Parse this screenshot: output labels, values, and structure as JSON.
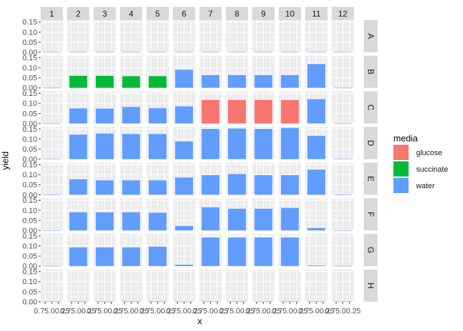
{
  "chart_data": {
    "type": "bar",
    "layout": "facet_grid",
    "xlabel": "x",
    "ylabel": "yield",
    "ylim": [
      0,
      0.16
    ],
    "y_ticks": [
      "0.00",
      "0.05",
      "0.10",
      "0.15"
    ],
    "x_tick_text": "0.75.00.25",
    "x_tick_labels": [
      "0.75",
      "1.00",
      "1.25"
    ],
    "grid": true,
    "columns": [
      "1",
      "2",
      "3",
      "4",
      "5",
      "6",
      "7",
      "8",
      "9",
      "10",
      "11",
      "12"
    ],
    "rows": [
      "A",
      "B",
      "C",
      "D",
      "E",
      "F",
      "G",
      "H"
    ],
    "legend": {
      "title": "media",
      "placement": "right",
      "entries": [
        {
          "label": "glucose",
          "color": "#F8766D"
        },
        {
          "label": "succinate",
          "color": "#00BA38"
        },
        {
          "label": "water",
          "color": "#619CFF"
        }
      ]
    },
    "cells": [
      {
        "row": "A",
        "values": [
          0.001,
          0.001,
          0.001,
          0.001,
          0.001,
          0.001,
          0.001,
          0.001,
          0.001,
          0.001,
          0.001,
          0.001
        ],
        "media": [
          "water",
          "water",
          "water",
          "water",
          "water",
          "water",
          "water",
          "water",
          "water",
          "water",
          "water",
          "water"
        ]
      },
      {
        "row": "B",
        "values": [
          0.001,
          0.06,
          0.06,
          0.058,
          0.058,
          0.09,
          0.063,
          0.063,
          0.063,
          0.063,
          0.118,
          0.001
        ],
        "media": [
          "water",
          "succinate",
          "succinate",
          "succinate",
          "succinate",
          "water",
          "water",
          "water",
          "water",
          "water",
          "water",
          "water"
        ]
      },
      {
        "row": "C",
        "values": [
          0.001,
          0.075,
          0.074,
          0.082,
          0.076,
          0.085,
          0.117,
          0.117,
          0.117,
          0.117,
          0.121,
          0.001
        ],
        "media": [
          "water",
          "water",
          "water",
          "water",
          "water",
          "water",
          "glucose",
          "glucose",
          "glucose",
          "glucose",
          "water",
          "water"
        ]
      },
      {
        "row": "D",
        "values": [
          0.001,
          0.122,
          0.127,
          0.125,
          0.125,
          0.088,
          0.15,
          0.152,
          0.15,
          0.155,
          0.116,
          0.001
        ],
        "media": [
          "water",
          "water",
          "water",
          "water",
          "water",
          "water",
          "water",
          "water",
          "water",
          "water",
          "water",
          "water"
        ]
      },
      {
        "row": "E",
        "values": [
          0.001,
          0.077,
          0.072,
          0.072,
          0.072,
          0.086,
          0.098,
          0.103,
          0.098,
          0.098,
          0.125,
          0.001
        ],
        "media": [
          "water",
          "water",
          "water",
          "water",
          "water",
          "water",
          "water",
          "water",
          "water",
          "water",
          "water",
          "water"
        ]
      },
      {
        "row": "F",
        "values": [
          0.001,
          0.09,
          0.09,
          0.09,
          0.088,
          0.022,
          0.115,
          0.108,
          0.108,
          0.112,
          0.012,
          0.001
        ],
        "media": [
          "water",
          "water",
          "water",
          "water",
          "water",
          "water",
          "water",
          "water",
          "water",
          "water",
          "water",
          "water"
        ]
      },
      {
        "row": "G",
        "values": [
          0.001,
          0.093,
          0.093,
          0.093,
          0.097,
          0.007,
          0.142,
          0.142,
          0.142,
          0.142,
          0.003,
          0.001
        ],
        "media": [
          "water",
          "water",
          "water",
          "water",
          "water",
          "water",
          "water",
          "water",
          "water",
          "water",
          "water",
          "water"
        ]
      },
      {
        "row": "H",
        "values": [
          0.001,
          0.001,
          0.001,
          0.001,
          0.001,
          0.001,
          0.001,
          0.001,
          0.001,
          0.001,
          0.001,
          0.001
        ],
        "media": [
          "water",
          "water",
          "water",
          "water",
          "water",
          "water",
          "water",
          "water",
          "water",
          "water",
          "water",
          "water"
        ]
      }
    ]
  }
}
